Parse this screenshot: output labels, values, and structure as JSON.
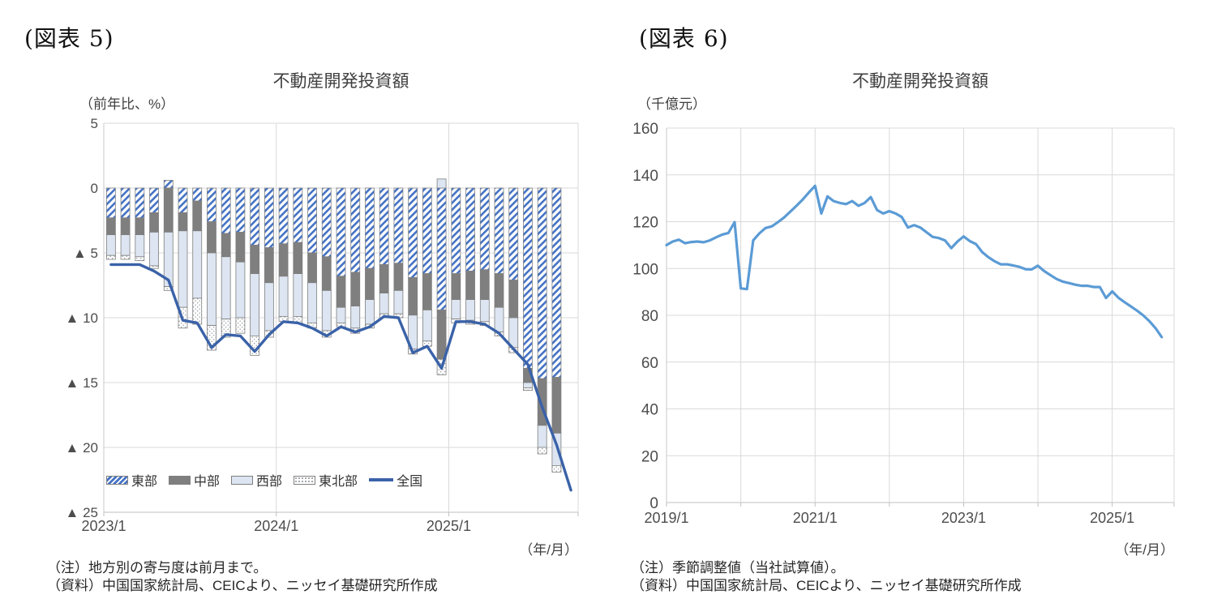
{
  "figure5": {
    "label": "(図表 5)",
    "title": "不動産開発投資額",
    "unit_label": "（前年比、%）",
    "axis_unit_note": "（年/月）",
    "notes": [
      "（注）地方別の寄与度は前月まで。",
      "（資料）中国国家統計局、CEICより、ニッセイ基礎研究所作成"
    ]
  },
  "figure6": {
    "label": "(図表 6)",
    "title": "不動産開発投資額",
    "unit_label": "（千億元）",
    "axis_unit_note": "（年/月）",
    "notes": [
      "（注）季節調整値（当社試算値）。",
      "（資料）中国国家統計局、CEICより、ニッセイ基礎研究所作成"
    ]
  },
  "colors": {
    "east_hatch": "#4472C4",
    "central_fill": "#7F7F7F",
    "west_fill": "#DCE5F1",
    "northeast_dot": "#8C9196",
    "bar_border": "#7F7F7F",
    "national_line": "#3A62A8",
    "right_line": "#5B9BD5",
    "grid": "#D9D9D9",
    "axis": "#BFBFBF",
    "tick_text": "#4D4D4D"
  },
  "chart_data": [
    {
      "type": "bar",
      "subtype": "stacked-contribution-bars-with-line",
      "title": "不動産開発投資額",
      "ylabel": "前年比、%",
      "ylim": [
        -25,
        5
      ],
      "yticks": [
        5,
        0,
        -5,
        -10,
        -15,
        -20,
        -25
      ],
      "ytick_labels": [
        "5",
        "0",
        "▲ 5",
        "▲ 10",
        "▲ 15",
        "▲ 20",
        "▲ 25"
      ],
      "x_gridline_labels": [
        "2023/1",
        "2024/1",
        "2025/1"
      ],
      "grid": true,
      "legend_position": "bottom-inside",
      "categories": [
        "2023/1",
        "2023/2",
        "2023/3",
        "2023/4",
        "2023/5",
        "2023/6",
        "2023/7",
        "2023/8",
        "2023/9",
        "2023/10",
        "2023/11",
        "2023/12",
        "2024/1",
        "2024/2",
        "2024/3",
        "2024/4",
        "2024/5",
        "2024/6",
        "2024/7",
        "2024/8",
        "2024/9",
        "2024/10",
        "2024/11",
        "2024/12",
        "2025/1",
        "2025/2",
        "2025/3",
        "2025/4",
        "2025/5",
        "2025/6",
        "2025/7",
        "2025/8",
        "2025/9"
      ],
      "series": [
        {
          "name": "東部",
          "type": "bar",
          "pattern": "blue-diagonal-hatch",
          "values": [
            -2.3,
            -2.3,
            -2.3,
            -1.9,
            0.6,
            -1.9,
            -1.0,
            -2.6,
            -3.5,
            -3.4,
            -4.4,
            -4.6,
            -4.3,
            -4.2,
            -5.0,
            -5.3,
            -6.8,
            -6.5,
            -6.2,
            -5.9,
            -5.8,
            -6.9,
            -6.6,
            -9.4,
            -6.6,
            -6.4,
            -6.3,
            -6.6,
            -7.1,
            -13.9,
            -14.7,
            -14.6,
            null
          ]
        },
        {
          "name": "中部",
          "type": "bar",
          "pattern": "solid-gray",
          "values": [
            -1.3,
            -1.3,
            -1.3,
            -1.5,
            -3.4,
            -1.4,
            -2.3,
            -2.4,
            -1.8,
            -2.3,
            -2.2,
            -2.7,
            -2.5,
            -2.4,
            -2.3,
            -2.6,
            -2.4,
            -2.6,
            -2.4,
            -2.2,
            -2.1,
            -2.9,
            -2.8,
            -3.8,
            -2.0,
            -2.2,
            -2.3,
            -2.6,
            -2.9,
            -1.1,
            -3.6,
            -4.3,
            null
          ]
        },
        {
          "name": "西部",
          "type": "bar",
          "pattern": "solid-light-blue",
          "values": [
            -1.6,
            -1.6,
            -1.7,
            -2.6,
            -4.2,
            -5.9,
            -5.2,
            -5.6,
            -4.8,
            -4.3,
            -4.8,
            -3.7,
            -3.1,
            -3.3,
            -3.1,
            -3.1,
            -1.2,
            -1.7,
            -1.9,
            -1.6,
            -1.8,
            -2.6,
            -2.4,
            0.7,
            -1.5,
            -1.6,
            -1.7,
            -1.9,
            -2.3,
            -0.4,
            -1.7,
            -2.5,
            null
          ]
        },
        {
          "name": "東北部",
          "type": "bar",
          "pattern": "white-dotted",
          "values": [
            -0.3,
            -0.3,
            -0.3,
            -0.2,
            -0.3,
            -1.6,
            -2.0,
            -1.9,
            -1.4,
            -1.2,
            -1.5,
            -0.5,
            -0.4,
            -0.5,
            -0.4,
            -0.5,
            -0.3,
            -0.4,
            -0.3,
            -0.3,
            -0.3,
            -0.4,
            -0.4,
            -1.2,
            -0.3,
            -0.3,
            -0.3,
            -0.3,
            -0.4,
            -0.2,
            -0.5,
            -0.5,
            null
          ]
        },
        {
          "name": "全国",
          "type": "line",
          "values": [
            -5.9,
            -5.9,
            -5.9,
            -6.4,
            -7.1,
            -10.2,
            -10.4,
            -12.3,
            -11.3,
            -11.4,
            -12.6,
            -11.3,
            -10.3,
            -10.4,
            -10.8,
            -11.4,
            -10.7,
            -11.1,
            -10.7,
            -9.9,
            -10.0,
            -12.7,
            -12.2,
            -13.9,
            -10.3,
            -10.3,
            -10.5,
            -11.2,
            -12.4,
            -13.6,
            -16.9,
            -19.8,
            -23.3
          ]
        }
      ]
    },
    {
      "type": "line",
      "title": "不動産開発投資額",
      "ylabel": "千億元",
      "ylim": [
        0,
        160
      ],
      "yticks": [
        160,
        140,
        120,
        100,
        80,
        60,
        40,
        20,
        0
      ],
      "x_labeled_ticks": [
        "2019/1",
        "2021/1",
        "2023/1",
        "2025/1"
      ],
      "grid": true,
      "x": [
        "2019/1",
        "2019/2",
        "2019/3",
        "2019/4",
        "2019/5",
        "2019/6",
        "2019/7",
        "2019/8",
        "2019/9",
        "2019/10",
        "2019/11",
        "2019/12",
        "2020/1",
        "2020/2",
        "2020/3",
        "2020/4",
        "2020/5",
        "2020/6",
        "2020/7",
        "2020/8",
        "2020/9",
        "2020/10",
        "2020/11",
        "2020/12",
        "2021/1",
        "2021/2",
        "2021/3",
        "2021/4",
        "2021/5",
        "2021/6",
        "2021/7",
        "2021/8",
        "2021/9",
        "2021/10",
        "2021/11",
        "2021/12",
        "2022/1",
        "2022/2",
        "2022/3",
        "2022/4",
        "2022/5",
        "2022/6",
        "2022/7",
        "2022/8",
        "2022/9",
        "2022/10",
        "2022/11",
        "2022/12",
        "2023/1",
        "2023/2",
        "2023/3",
        "2023/4",
        "2023/5",
        "2023/6",
        "2023/7",
        "2023/8",
        "2023/9",
        "2023/10",
        "2023/11",
        "2023/12",
        "2024/1",
        "2024/2",
        "2024/3",
        "2024/4",
        "2024/5",
        "2024/6",
        "2024/7",
        "2024/8",
        "2024/9",
        "2024/10",
        "2024/11",
        "2024/12",
        "2025/1",
        "2025/2",
        "2025/3",
        "2025/4",
        "2025/5",
        "2025/6",
        "2025/7",
        "2025/8",
        "2025/9"
      ],
      "values": [
        110.0,
        111.5,
        112.3,
        110.8,
        111.3,
        111.5,
        111.2,
        112.0,
        113.3,
        114.5,
        115.2,
        119.8,
        91.5,
        91.2,
        112.0,
        115.0,
        117.3,
        118.0,
        119.8,
        121.8,
        124.3,
        126.8,
        129.5,
        132.5,
        135.3,
        123.5,
        130.8,
        128.8,
        128.0,
        127.5,
        128.8,
        126.8,
        128.0,
        130.5,
        125.0,
        123.5,
        124.5,
        123.5,
        122.0,
        117.5,
        118.5,
        117.5,
        115.5,
        113.5,
        113.0,
        112.0,
        108.7,
        111.5,
        113.7,
        111.7,
        110.4,
        107.0,
        104.8,
        103.1,
        101.8,
        101.8,
        101.3,
        100.7,
        99.7,
        99.6,
        101.2,
        98.9,
        97.2,
        95.5,
        94.4,
        93.8,
        93.1,
        92.6,
        92.6,
        92.1,
        92.1,
        87.4,
        90.2,
        87.5,
        85.6,
        83.8,
        82.0,
        80.0,
        77.5,
        74.5,
        70.7
      ]
    }
  ]
}
